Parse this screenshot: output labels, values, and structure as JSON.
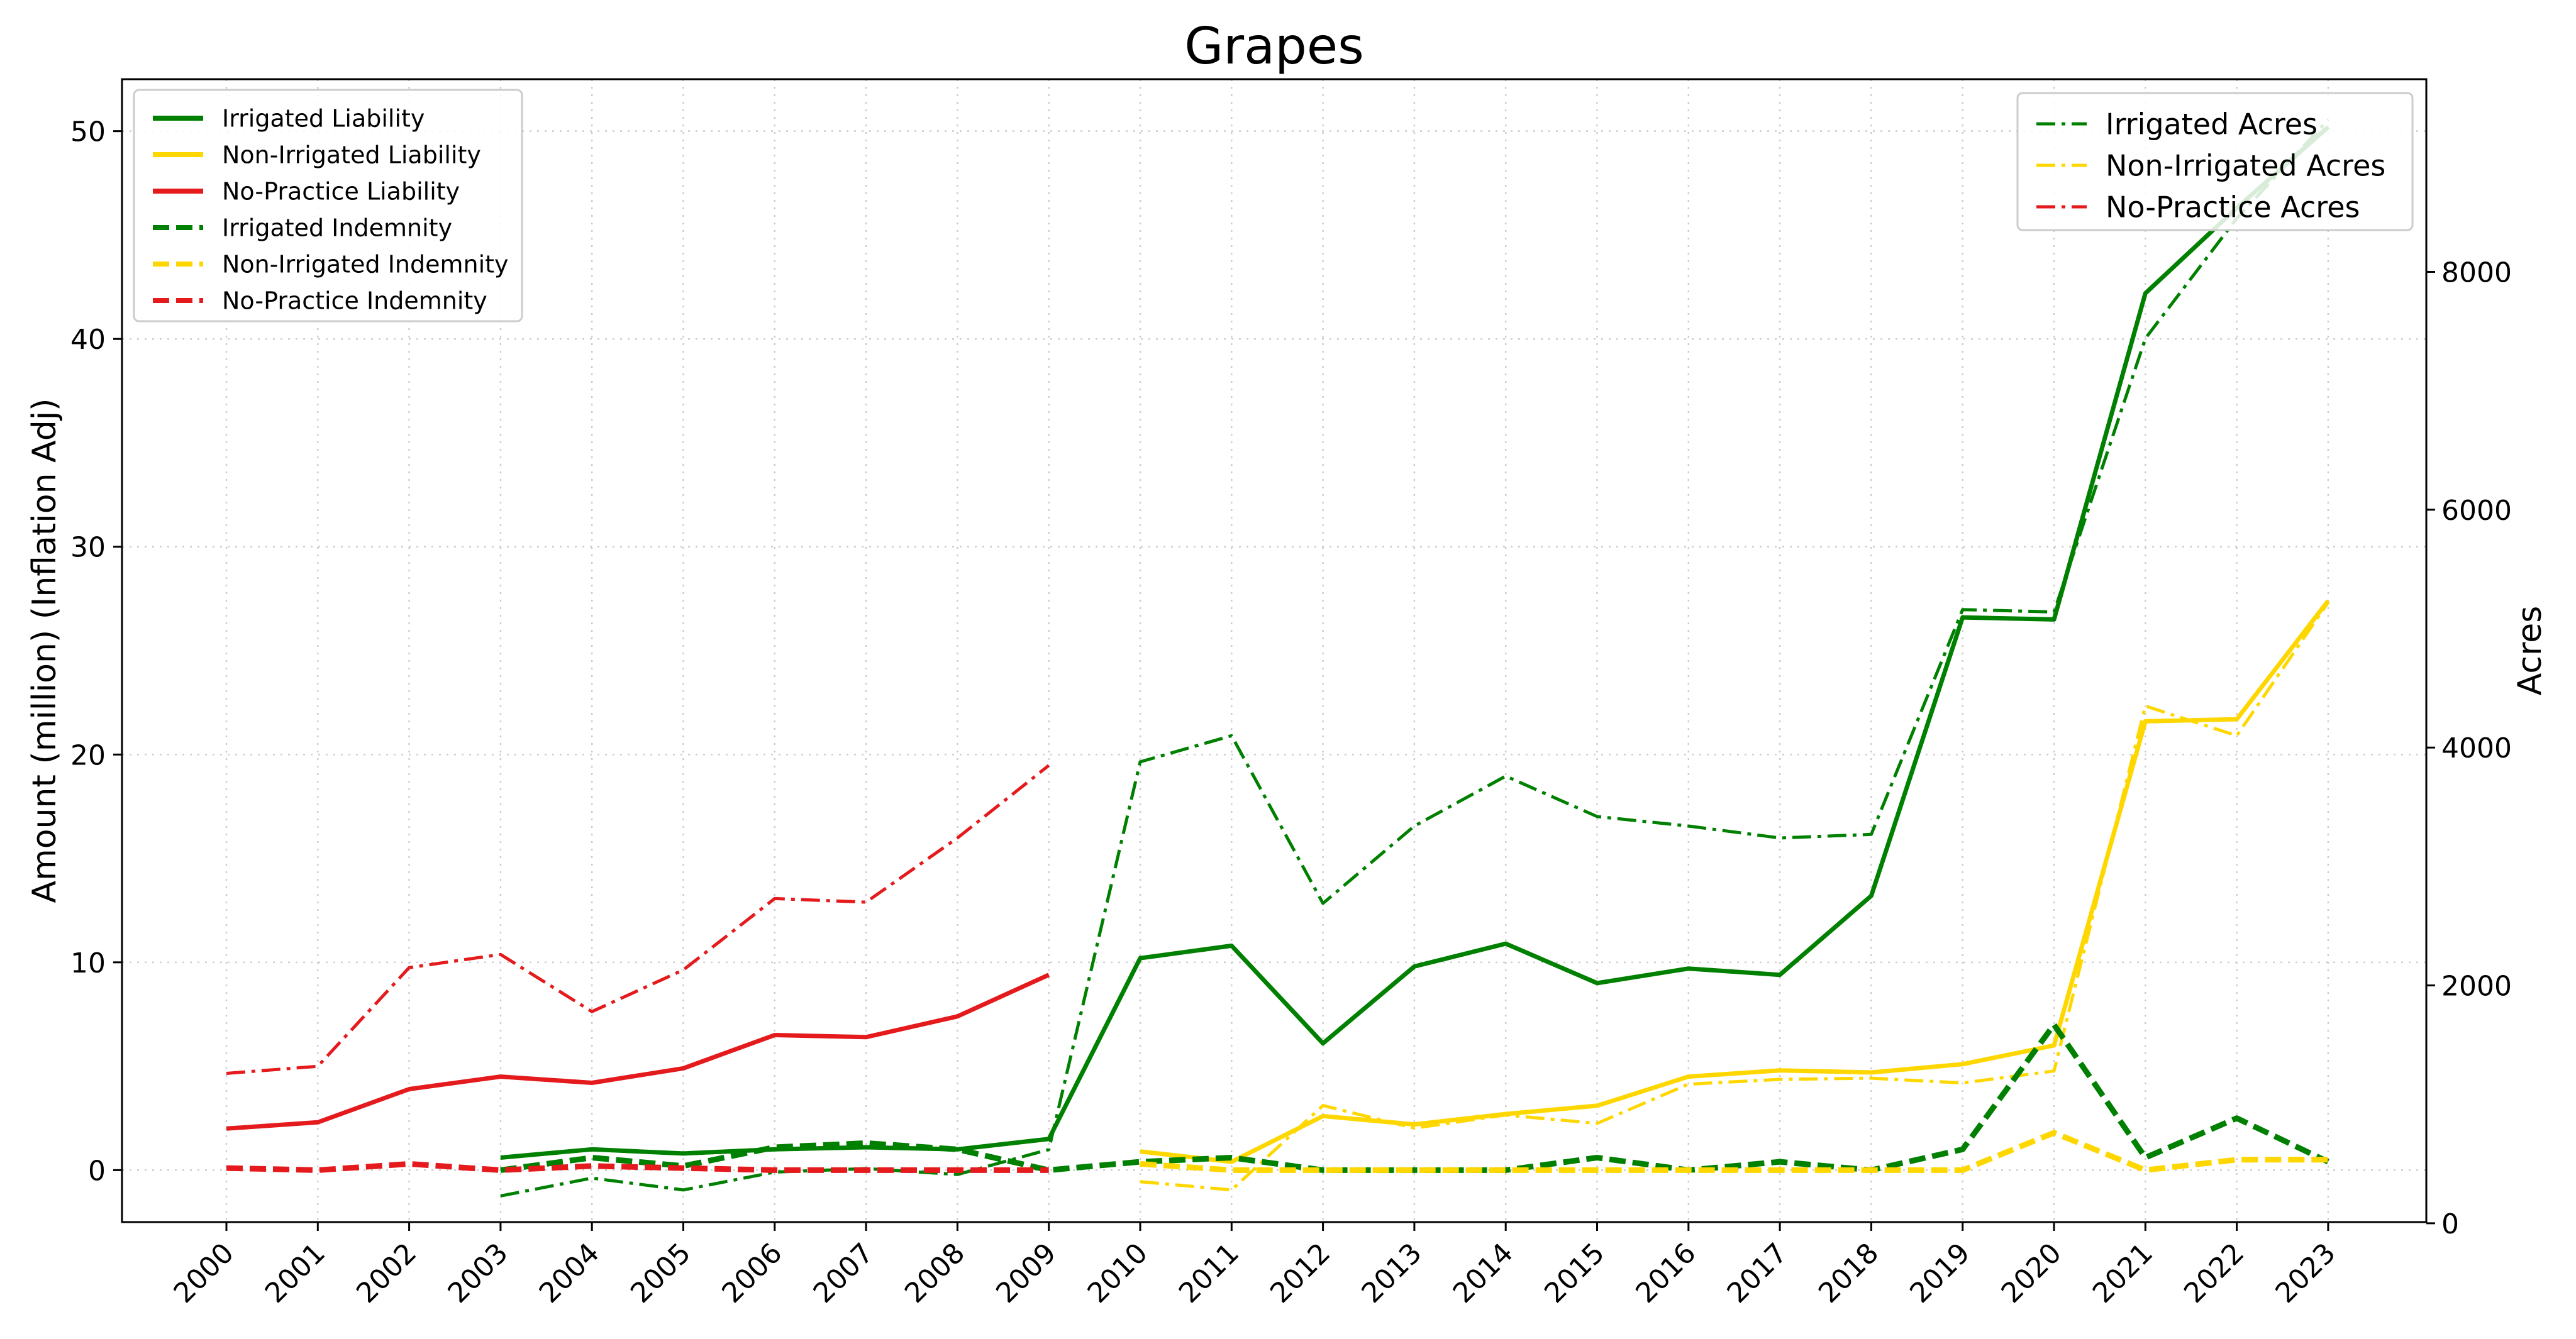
{
  "chart_data": {
    "type": "line",
    "title": "Grapes",
    "xlabel": "",
    "ylabel": "Amount (million) (Inflation Adj)",
    "y2label": "Acres",
    "categories": [
      "2000",
      "2001",
      "2002",
      "2003",
      "2004",
      "2005",
      "2006",
      "2007",
      "2008",
      "2009",
      "2010",
      "2011",
      "2012",
      "2013",
      "2014",
      "2015",
      "2016",
      "2017",
      "2018",
      "2019",
      "2020",
      "2021",
      "2022",
      "2023"
    ],
    "ylim": [
      -2.5,
      52.5
    ],
    "y2lim": [
      10,
      9620
    ],
    "yticks": [
      0,
      10,
      20,
      30,
      40,
      50
    ],
    "y2ticks": [
      0,
      2000,
      4000,
      6000,
      8000
    ],
    "grid": true,
    "legend_left_position": "upper left",
    "legend_right_position": "upper right",
    "series_left": [
      {
        "name": "Irrigated Liability",
        "color": "#008000",
        "style": "solid",
        "values": [
          null,
          null,
          null,
          0.6,
          1.0,
          0.8,
          1.0,
          1.1,
          1.0,
          1.5,
          10.2,
          10.8,
          6.1,
          9.8,
          10.9,
          9.0,
          9.7,
          9.4,
          13.2,
          26.6,
          26.5,
          42.2,
          46.3,
          50.2
        ]
      },
      {
        "name": "Non-Irrigated Liability",
        "color": "#FFD700",
        "style": "solid",
        "values": [
          null,
          null,
          null,
          null,
          null,
          null,
          null,
          null,
          null,
          null,
          0.9,
          0.4,
          2.6,
          2.2,
          2.7,
          3.1,
          4.5,
          4.8,
          4.7,
          5.1,
          6.0,
          21.6,
          21.7,
          27.4
        ]
      },
      {
        "name": "No-Practice Liability",
        "color": "#E41A1C",
        "style": "solid",
        "values": [
          2.0,
          2.3,
          3.9,
          4.5,
          4.2,
          4.9,
          6.5,
          6.4,
          7.4,
          9.4,
          null,
          null,
          null,
          null,
          null,
          null,
          null,
          null,
          null,
          null,
          null,
          null,
          null,
          null
        ]
      },
      {
        "name": "Irrigated Indemnity",
        "color": "#008000",
        "style": "dashed",
        "values": [
          null,
          null,
          null,
          0.0,
          0.6,
          0.2,
          1.1,
          1.3,
          1.0,
          0.0,
          0.4,
          0.6,
          0.0,
          0.0,
          0.0,
          0.6,
          0.0,
          0.4,
          0.0,
          1.0,
          7.0,
          0.6,
          2.5,
          0.4
        ]
      },
      {
        "name": "Non-Irrigated Indemnity",
        "color": "#FFD700",
        "style": "dashed",
        "values": [
          null,
          null,
          null,
          null,
          null,
          null,
          null,
          null,
          null,
          null,
          0.3,
          0.0,
          0.0,
          0.0,
          0.0,
          0.0,
          0.0,
          0.0,
          0.0,
          0.0,
          1.8,
          0.0,
          0.5,
          0.5
        ]
      },
      {
        "name": "No-Practice Indemnity",
        "color": "#E41A1C",
        "style": "dashed",
        "values": [
          0.1,
          0.0,
          0.3,
          0.0,
          0.2,
          0.1,
          0.0,
          0.0,
          0.0,
          0.0,
          null,
          null,
          null,
          null,
          null,
          null,
          null,
          null,
          null,
          null,
          null,
          null,
          null,
          null
        ]
      }
    ],
    "series_right": [
      {
        "name": "Irrigated Acres",
        "color": "#008000",
        "style": "dashdot",
        "values": [
          null,
          null,
          null,
          230,
          380,
          280,
          430,
          460,
          410,
          620,
          3880,
          4100,
          2690,
          3340,
          3760,
          3420,
          3340,
          3240,
          3270,
          5160,
          5140,
          7440,
          8450,
          9280
        ]
      },
      {
        "name": "Non-Irrigated Acres",
        "color": "#FFD700",
        "style": "dashdot",
        "values": [
          null,
          null,
          null,
          null,
          null,
          null,
          null,
          null,
          null,
          null,
          350,
          280,
          990,
          800,
          910,
          840,
          1170,
          1210,
          1220,
          1180,
          1280,
          4350,
          4100,
          5220
        ]
      },
      {
        "name": "No-Practice Acres",
        "color": "#E41A1C",
        "style": "dashdot",
        "values": [
          1260,
          1320,
          2150,
          2260,
          1780,
          2130,
          2730,
          2700,
          3240,
          3850,
          null,
          null,
          null,
          null,
          null,
          null,
          null,
          null,
          null,
          null,
          null,
          null,
          null,
          null
        ]
      }
    ]
  }
}
